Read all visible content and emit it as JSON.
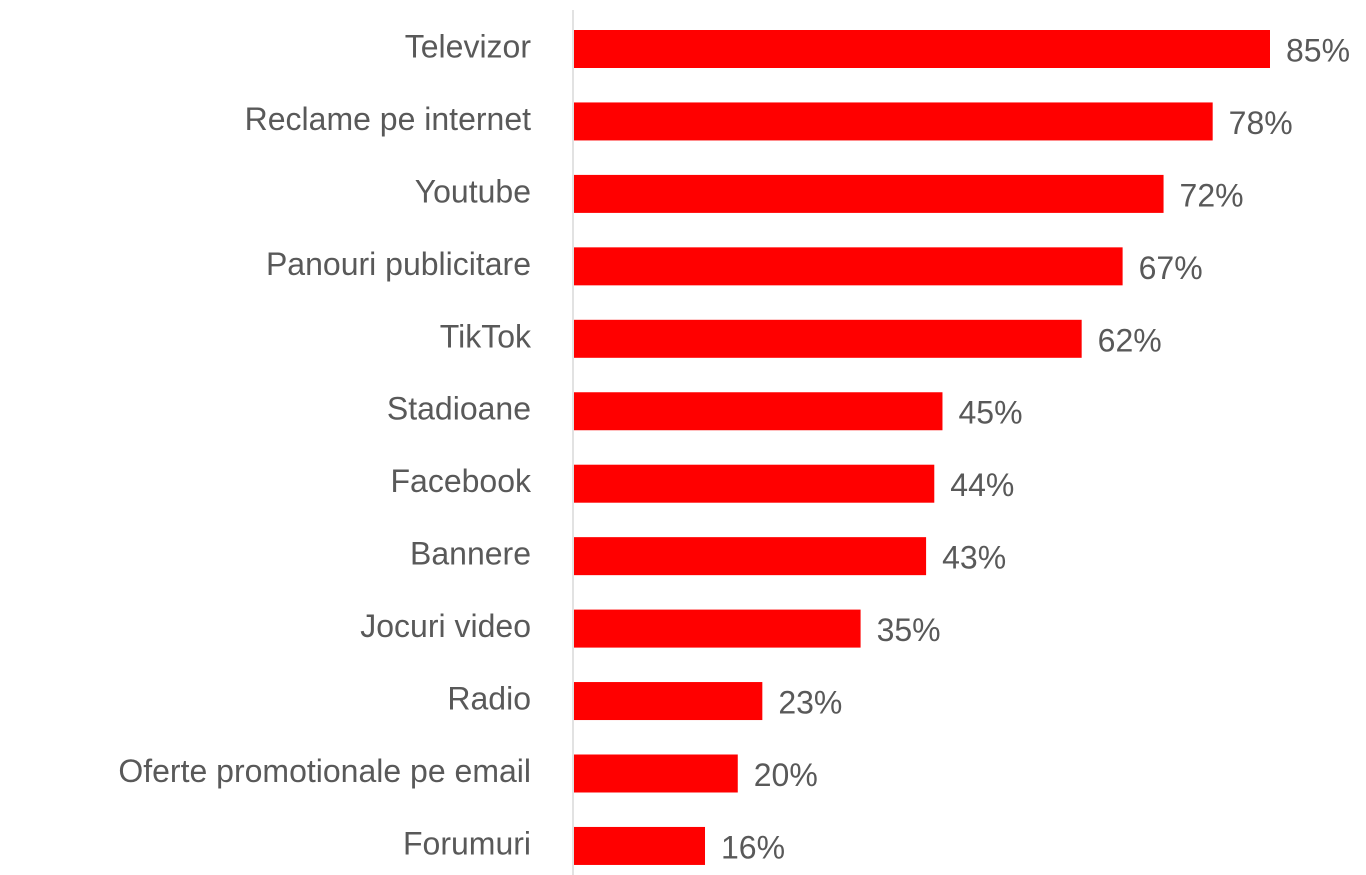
{
  "chart_data": {
    "type": "barh",
    "categories": [
      "Televizor",
      "Reclame pe internet",
      "Youtube",
      "Panouri publicitare",
      "TikTok",
      "Stadioane",
      "Facebook",
      "Bannere",
      "Jocuri video",
      "Radio",
      "Oferte promotionale pe email",
      "Forumuri"
    ],
    "values": [
      85,
      78,
      72,
      67,
      62,
      45,
      44,
      43,
      35,
      23,
      20,
      16
    ],
    "value_labels": [
      "85%",
      "78%",
      "72%",
      "67%",
      "62%",
      "45%",
      "44%",
      "43%",
      "35%",
      "23%",
      "20%",
      "16%"
    ],
    "color": "#ff0000"
  }
}
